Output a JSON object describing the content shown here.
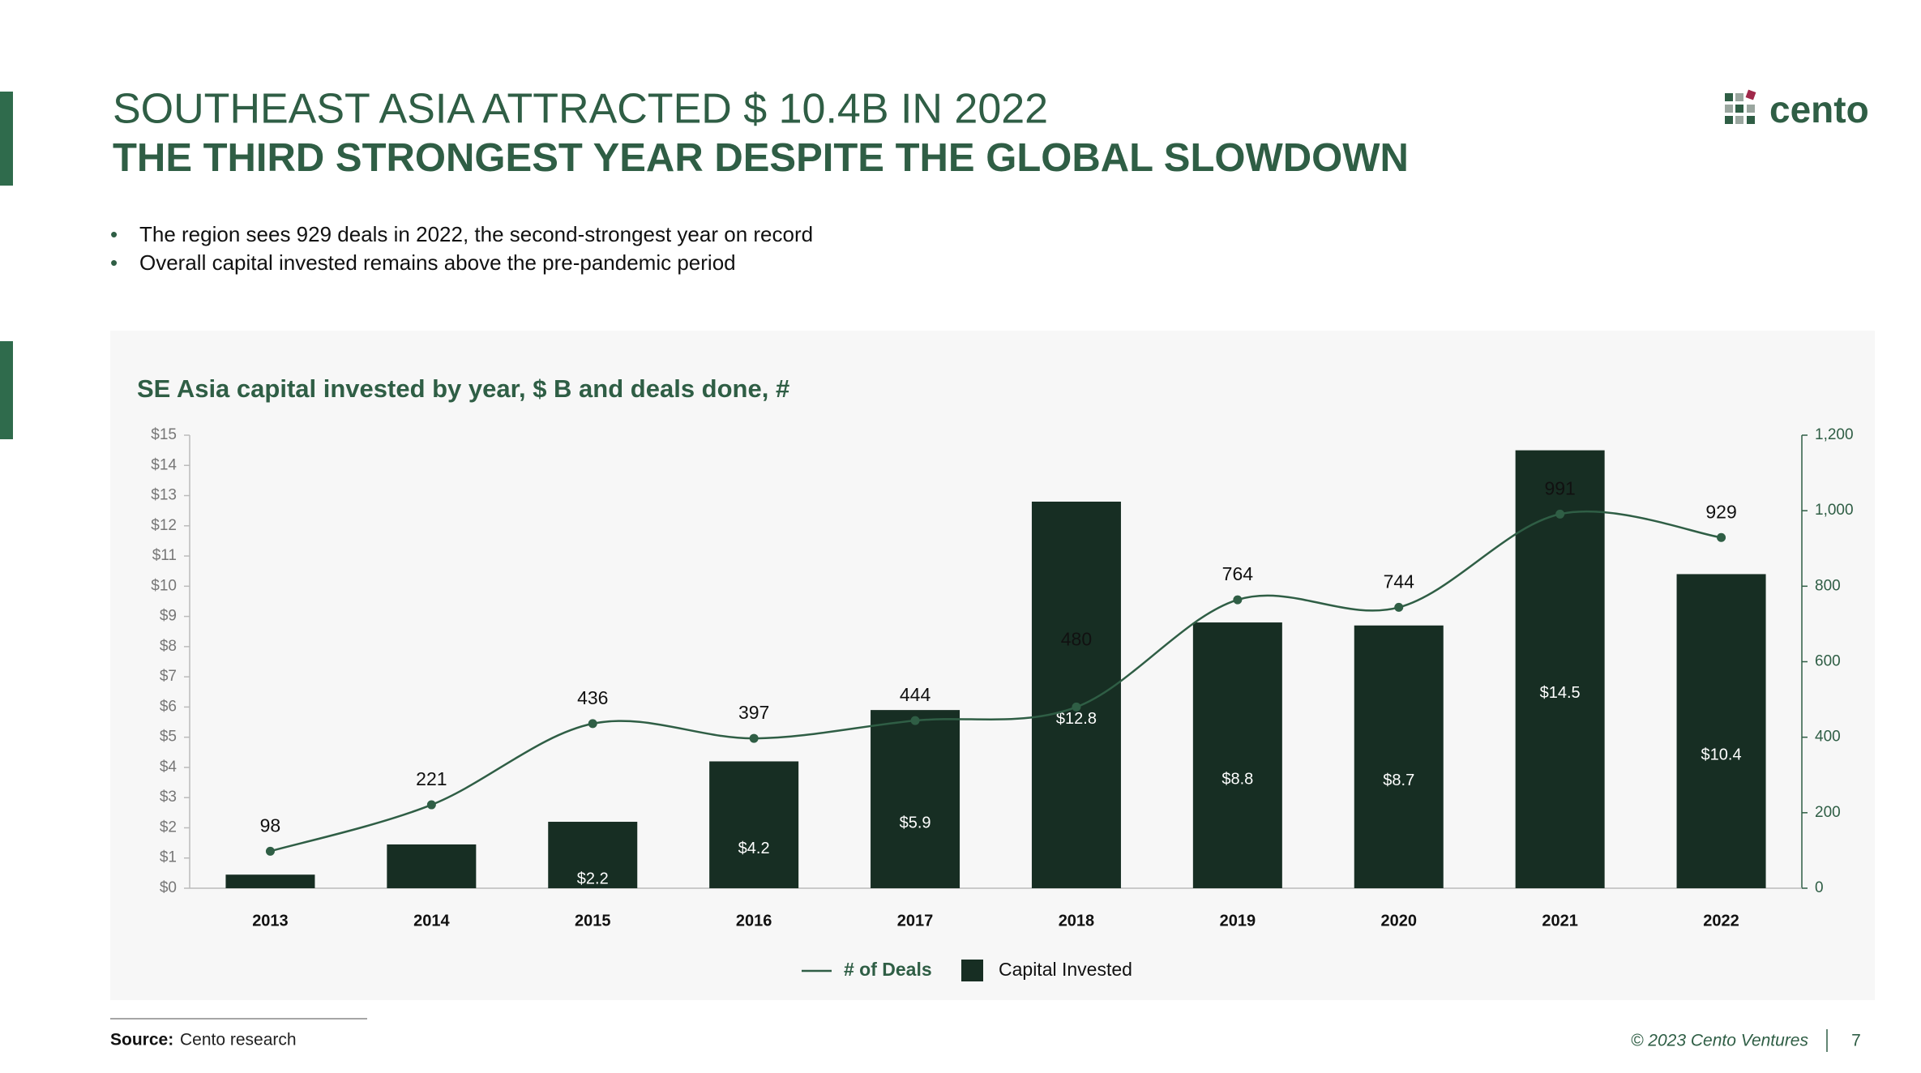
{
  "slide": {
    "title": "SOUTHEAST ASIA ATTRACTED $ 10.4B IN 2022",
    "subtitle": "THE THIRD STRONGEST YEAR DESPITE THE GLOBAL SLOWDOWN",
    "bullets": [
      "The region sees 929 deals in 2022, the second-strongest year on record",
      "Overall capital invested remains above the pre-pandemic period"
    ],
    "logo": "cento",
    "source_label": "Source:",
    "source": "Cento research",
    "copyright": "© 2023 Cento Ventures",
    "page": "7"
  },
  "chart_data": {
    "type": "combo",
    "title": "SE Asia capital invested by year, $ B and deals done, #",
    "categories": [
      "2013",
      "2014",
      "2015",
      "2016",
      "2017",
      "2018",
      "2019",
      "2020",
      "2021",
      "2022"
    ],
    "series": [
      {
        "name": "Capital Invested",
        "type": "bar",
        "color": "#172e23",
        "values": [
          0.45,
          1.45,
          2.2,
          4.2,
          5.9,
          12.8,
          8.8,
          8.7,
          14.5,
          10.4
        ],
        "value_labels": [
          null,
          null,
          "$2.2",
          "$4.2",
          "$5.9",
          "$12.8",
          "$8.8",
          "$8.7",
          "$14.5",
          "$10.4"
        ]
      },
      {
        "name": "# of Deals",
        "type": "line",
        "axis": "y2",
        "color": "#2f5e45",
        "values": [
          98,
          221,
          436,
          397,
          444,
          480,
          764,
          744,
          991,
          929
        ]
      }
    ],
    "ylim": [
      0,
      15
    ],
    "yticks": [
      {
        "value": 0,
        "label": "$0"
      },
      {
        "value": 1,
        "label": "$1"
      },
      {
        "value": 2,
        "label": "$2"
      },
      {
        "value": 3,
        "label": "$3"
      },
      {
        "value": 4,
        "label": "$4"
      },
      {
        "value": 5,
        "label": "$5"
      },
      {
        "value": 6,
        "label": "$6"
      },
      {
        "value": 7,
        "label": "$7"
      },
      {
        "value": 8,
        "label": "$8"
      },
      {
        "value": 9,
        "label": "$9"
      },
      {
        "value": 10,
        "label": "$10"
      },
      {
        "value": 11,
        "label": "$11"
      },
      {
        "value": 12,
        "label": "$12"
      },
      {
        "value": 13,
        "label": "$13"
      },
      {
        "value": 14,
        "label": "$14"
      },
      {
        "value": 15,
        "label": "$15"
      }
    ],
    "y2lim": [
      0,
      1200
    ],
    "y2ticks": [
      0,
      200,
      400,
      600,
      800,
      {
        "value": 1000,
        "label": "1,000"
      },
      {
        "value": 1200,
        "label": "1,200"
      }
    ],
    "grid": false,
    "legend": "bottom"
  }
}
